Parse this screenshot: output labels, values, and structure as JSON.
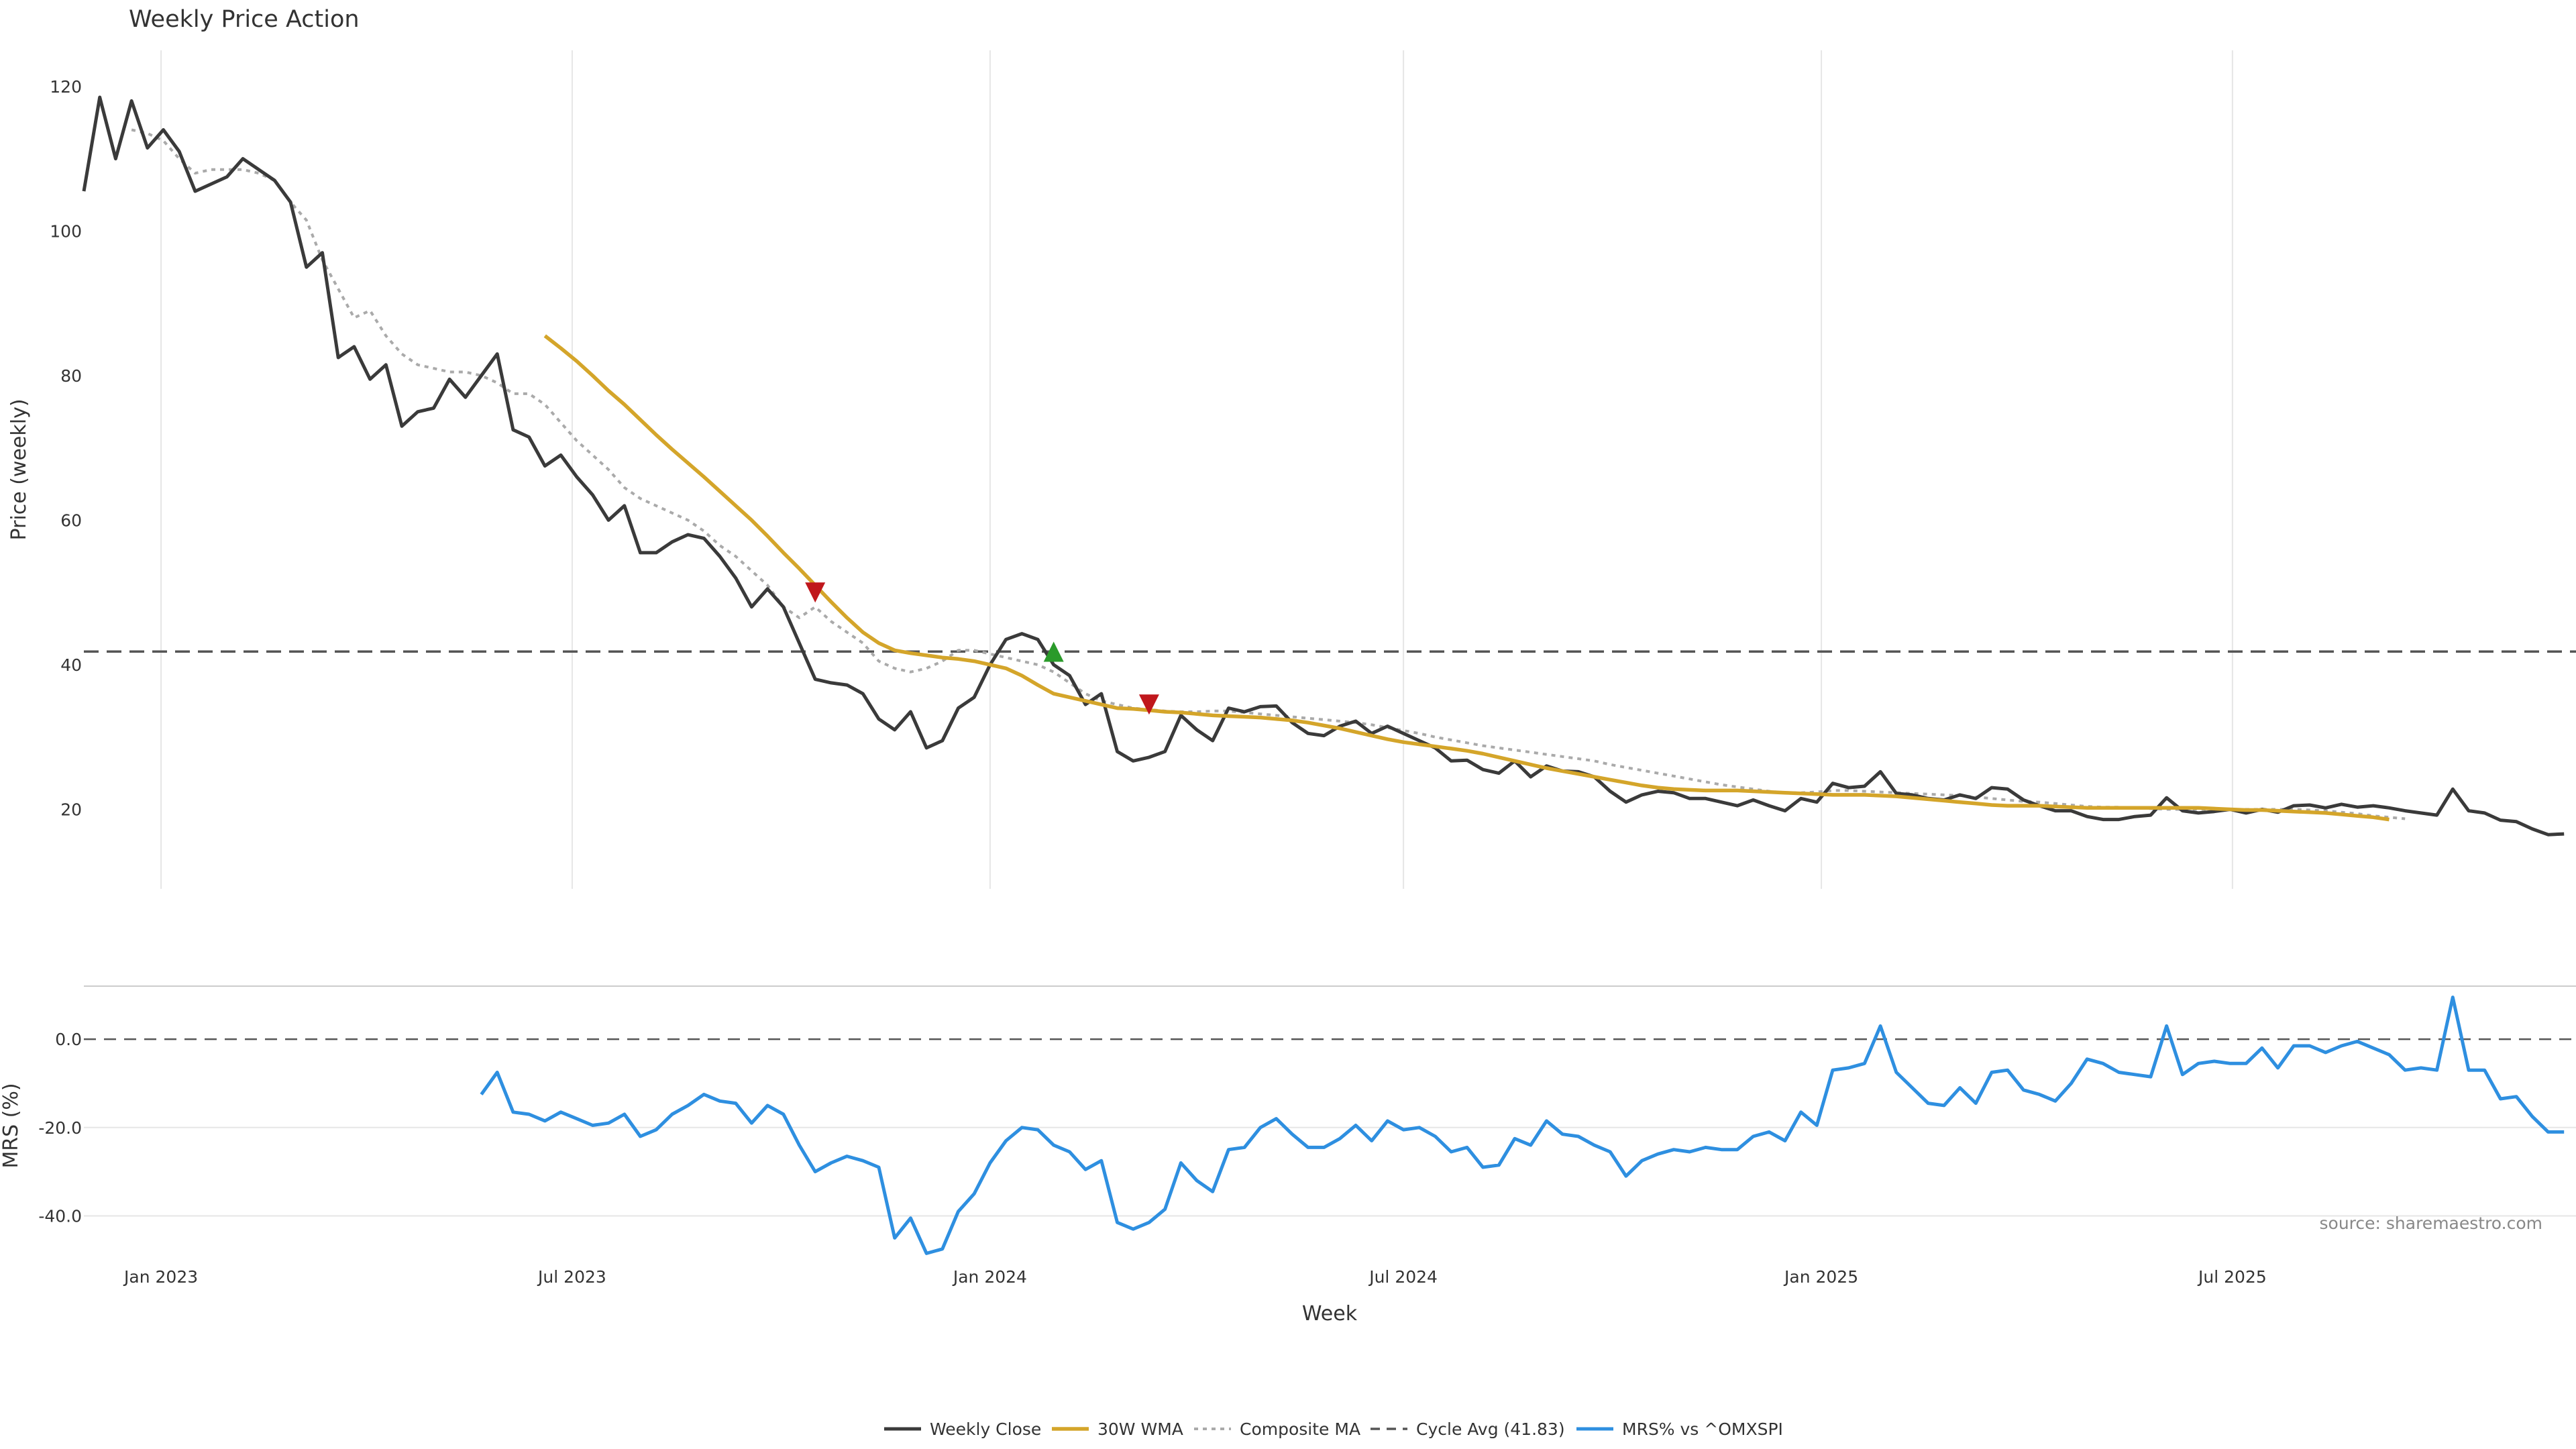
{
  "chart_data": {
    "type": "line",
    "title": "Weekly Price Action",
    "xlabel": "Week",
    "source": "source: sharemaestro.com",
    "x_ticks": [
      "Jan 2023",
      "Jul 2023",
      "Jan 2024",
      "Jul 2024",
      "Jan 2025",
      "Jul 2025"
    ],
    "x_range": [
      "2022-11-28",
      "2025-11-24"
    ],
    "legend_position": "bottom-center",
    "legend": [
      "Weekly Close",
      "30W WMA",
      "Composite MA",
      "Cycle Avg (41.83)",
      "MRS% vs ^OMXSPI"
    ],
    "colors": {
      "weekly_close": "#3a3a3a",
      "wma30": "#d4a52a",
      "composite_ma": "#aaaaaa",
      "cycle_avg": "#555555",
      "mrs": "#2e8fe0",
      "sell_marker": "#c0171c",
      "buy_marker": "#2a9a2a"
    },
    "price_panel": {
      "ylabel": "Price (weekly)",
      "ylim": [
        9,
        125
      ],
      "yticks": [
        20,
        40,
        60,
        80,
        100,
        120
      ],
      "cycle_avg": 41.83,
      "series": [
        {
          "name": "Weekly Close",
          "start_week": 0,
          "values": [
            105.5,
            118.5,
            110,
            118,
            111.5,
            114,
            111,
            105.5,
            106.5,
            107.5,
            110,
            108.5,
            107,
            104,
            95,
            97,
            82.5,
            84,
            79.5,
            81.5,
            73,
            75,
            75.5,
            79.5,
            77,
            80,
            83,
            72.5,
            71.5,
            67.5,
            69,
            66,
            63.5,
            60,
            62,
            55.5,
            55.5,
            57,
            58,
            57.5,
            55,
            52,
            48,
            50.5,
            48,
            43,
            38,
            37.5,
            37.2,
            36,
            32.5,
            31,
            33.5,
            28.5,
            29.5,
            34,
            35.5,
            40,
            43.5,
            44.3,
            43.5,
            40,
            38.5,
            34.5,
            36,
            28,
            26.7,
            27.2,
            28,
            33,
            31,
            29.5,
            34,
            33.5,
            34.2,
            34.3,
            32,
            30.5,
            30.2,
            31.5,
            32.2,
            30.5,
            31.5,
            30.5,
            29.5,
            28.5,
            26.7,
            26.8,
            25.5,
            25,
            26.7,
            24.5,
            26,
            25.3,
            25.2,
            24.5,
            22.5,
            21,
            22,
            22.5,
            22.3,
            21.5,
            21.5,
            21,
            20.5,
            21.3,
            20.5,
            19.8,
            21.5,
            21,
            23.6,
            23,
            23.2,
            25.2,
            22.2,
            22,
            21.5,
            21.3,
            22,
            21.5,
            23,
            22.8,
            21.3,
            20.5,
            19.8,
            19.8,
            19,
            18.6,
            18.6,
            19,
            19.2,
            21.6,
            19.8,
            19.5,
            19.7,
            20,
            19.5,
            20,
            19.6,
            20.5,
            20.6,
            20.2,
            20.7,
            20.3,
            20.5,
            20.2,
            19.8,
            19.5,
            19.2,
            22.8,
            19.8,
            19.5,
            18.5,
            18.3,
            17.3,
            16.5,
            16.6
          ]
        },
        {
          "name": "30W WMA",
          "start_week": 29,
          "values": [
            85.5,
            83.8,
            82,
            80,
            77.9,
            76,
            73.9,
            71.8,
            69.8,
            67.9,
            66,
            64,
            62,
            60,
            57.8,
            55.5,
            53.3,
            51,
            48.7,
            46.5,
            44.5,
            43,
            42,
            41.6,
            41.3,
            41,
            40.8,
            40.5,
            40,
            39.5,
            38.5,
            37.2,
            36,
            35.5,
            35,
            34.5,
            34,
            33.9,
            33.7,
            33.5,
            33.4,
            33.2,
            33,
            32.9,
            32.8,
            32.7,
            32.5,
            32.3,
            32,
            31.6,
            31.2,
            30.7,
            30.2,
            29.7,
            29.3,
            29,
            28.7,
            28.4,
            28.1,
            27.7,
            27.2,
            26.7,
            26.2,
            25.7,
            25.3,
            24.9,
            24.5,
            24.1,
            23.7,
            23.3,
            23,
            22.8,
            22.7,
            22.6,
            22.6,
            22.6,
            22.5,
            22.4,
            22.3,
            22.2,
            22.1,
            22,
            22,
            22,
            21.9,
            21.8,
            21.6,
            21.4,
            21.2,
            21,
            20.8,
            20.6,
            20.5,
            20.5,
            20.5,
            20.4,
            20.3,
            20.2,
            20.2,
            20.2,
            20.2,
            20.2,
            20.2,
            20.2,
            20.2,
            20.1,
            20,
            19.9,
            19.9,
            19.8,
            19.7,
            19.6,
            19.5,
            19.3,
            19.1,
            18.9,
            18.6
          ]
        },
        {
          "name": "Composite MA",
          "start_week": 3,
          "values": [
            114,
            113.5,
            112.5,
            110,
            108,
            108.5,
            108.5,
            108.5,
            108,
            107,
            104,
            101.5,
            96,
            92,
            88,
            89,
            85.5,
            83,
            81.5,
            81,
            80.5,
            80.5,
            80,
            79,
            77.5,
            77.5,
            76,
            73.5,
            71,
            69,
            67,
            64.5,
            63,
            62,
            61,
            60,
            58.5,
            56.5,
            55,
            53,
            51,
            48,
            46.5,
            48,
            46,
            44.5,
            43,
            40.5,
            39.5,
            39,
            39.5,
            40.5,
            42,
            42,
            41.5,
            41,
            40.5,
            40,
            39,
            37.5,
            36,
            35,
            34.5,
            34,
            33.8,
            33.6,
            33.5,
            33.5,
            33.6,
            33.6,
            33.4,
            33.2,
            33,
            32.8,
            32.6,
            32.4,
            32.2,
            32,
            31.7,
            31.3,
            30.9,
            30.5,
            30,
            29.6,
            29.2,
            28.8,
            28.5,
            28.2,
            27.9,
            27.6,
            27.3,
            27,
            26.7,
            26.2,
            25.8,
            25.4,
            25,
            24.6,
            24.2,
            23.8,
            23.4,
            23.1,
            22.8,
            22.5,
            22.3,
            22.3,
            22.4,
            22.6,
            22.6,
            22.5,
            22.4,
            22.3,
            22.2,
            22.1,
            22,
            21.9,
            21.7,
            21.5,
            21.3,
            21.1,
            21,
            20.8,
            20.6,
            20.4,
            20.3,
            20.3,
            20.2,
            20.1,
            20,
            20,
            20,
            20,
            20,
            20,
            20,
            20,
            20,
            19.9,
            19.8,
            19.6,
            19.4,
            19.1,
            18.9,
            18.7
          ]
        }
      ],
      "markers": [
        {
          "type": "sell",
          "week": 46,
          "value": 50
        },
        {
          "type": "buy",
          "week": 61,
          "value": 41.8
        },
        {
          "type": "sell",
          "week": 67,
          "value": 34.5
        }
      ]
    },
    "mrs_panel": {
      "ylabel": "MRS (%)",
      "ylim": [
        -49.5,
        10.5
      ],
      "yticks": [
        0.0,
        -20.0,
        -40.0
      ],
      "ytick_labels": [
        "0.0",
        "-20.0",
        "-40.0"
      ],
      "baseline": 0,
      "series": [
        {
          "name": "MRS% vs ^OMXSPI",
          "start_week": 25,
          "values": [
            -12.5,
            -7.5,
            -16.5,
            -17,
            -18.5,
            -16.5,
            -18,
            -19.5,
            -19,
            -17,
            -22,
            -20.5,
            -17,
            -15,
            -12.5,
            -14,
            -14.5,
            -19,
            -15,
            -17,
            -24,
            -30,
            -28,
            -26.5,
            -27.5,
            -29,
            -45,
            -40.5,
            -48.5,
            -47.5,
            -39,
            -35,
            -28,
            -23,
            -20,
            -20.5,
            -24,
            -25.5,
            -29.5,
            -27.5,
            -41.5,
            -43,
            -41.5,
            -38.5,
            -28,
            -32,
            -34.5,
            -25,
            -24.5,
            -20,
            -18,
            -21.5,
            -24.5,
            -24.5,
            -22.5,
            -19.5,
            -23,
            -18.5,
            -20.5,
            -20,
            -22,
            -25.5,
            -24.5,
            -29,
            -28.5,
            -22.5,
            -24,
            -18.5,
            -21.5,
            -22,
            -24,
            -25.5,
            -31,
            -27.5,
            -26,
            -25,
            -25.5,
            -24.5,
            -25,
            -25,
            -22,
            -21,
            -23,
            -16.5,
            -19.5,
            -7,
            -6.5,
            -5.5,
            3,
            -7.5,
            -11,
            -14.5,
            -15,
            -11,
            -14.5,
            -7.5,
            -7,
            -11.5,
            -12.5,
            -14,
            -10,
            -4.5,
            -5.5,
            -7.5,
            -8,
            -8.5,
            3,
            -8,
            -5.5,
            -5,
            -5.5,
            -5.5,
            -2,
            -6.5,
            -1.5,
            -1.5,
            -3,
            -1.5,
            -0.5,
            -2,
            -3.5,
            -7,
            -6.5,
            -7,
            9.5,
            -7,
            -7,
            -13.5,
            -13,
            -17.5,
            -21,
            -21
          ]
        }
      ]
    }
  }
}
